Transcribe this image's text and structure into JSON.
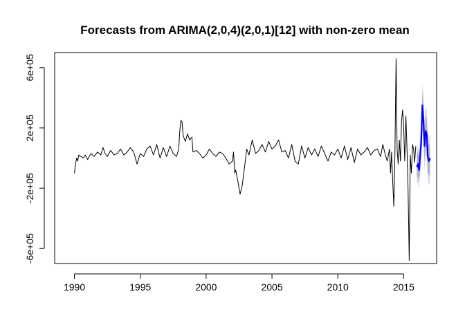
{
  "chart_data": {
    "type": "line",
    "title": "Forecasts from ARIMA(2,0,4)(2,0,1)[12] with non-zero mean",
    "xlabel": "",
    "ylabel": "",
    "xlim": [
      1988.5,
      2017.5
    ],
    "ylim": [
      -700000,
      700000
    ],
    "x_ticks": [
      1990,
      1995,
      2000,
      2005,
      2010,
      2015
    ],
    "x_tick_labels": [
      "1990",
      "1995",
      "2000",
      "2005",
      "2010",
      "2015"
    ],
    "y_ticks": [
      -600000,
      -200000,
      200000,
      600000
    ],
    "y_tick_labels": [
      "-6e+05",
      "-2e+05",
      "2e+05",
      "6e+05"
    ],
    "grid": false,
    "legend": "none",
    "colors": {
      "history": "#000000",
      "forecast": "#0000ff",
      "interval_95": "#dbdbe6",
      "interval_80": "#b1b1cc"
    },
    "series": [
      {
        "x": [
          1990.0,
          1990.08,
          1990.17,
          1990.25,
          1990.33,
          1990.5,
          1990.67,
          1990.83,
          1991.0,
          1991.25,
          1991.5,
          1991.75,
          1992.0,
          1992.17,
          1992.33,
          1992.5,
          1992.75,
          1993.0,
          1993.25,
          1993.5,
          1993.75,
          1994.0,
          1994.25,
          1994.5,
          1994.75,
          1995.0,
          1995.25,
          1995.5,
          1995.75,
          1996.0,
          1996.25,
          1996.5,
          1996.75,
          1997.0,
          1997.25,
          1997.5,
          1997.75,
          1997.92,
          1998.0,
          1998.08,
          1998.17,
          1998.25,
          1998.42,
          1998.58,
          1998.75,
          1998.92,
          1999.0,
          1999.25,
          1999.5,
          1999.75,
          2000.0,
          2000.25,
          2000.5,
          2000.75,
          2001.0,
          2001.25,
          2001.5,
          2001.75,
          2002.0,
          2002.08,
          2002.17,
          2002.25,
          2002.42,
          2002.58,
          2002.75,
          2003.0,
          2003.08,
          2003.25,
          2003.5,
          2003.75,
          2004.0,
          2004.25,
          2004.5,
          2004.75,
          2005.0,
          2005.25,
          2005.5,
          2005.75,
          2006.0,
          2006.25,
          2006.5,
          2006.75,
          2007.0,
          2007.25,
          2007.5,
          2007.75,
          2008.0,
          2008.25,
          2008.5,
          2008.75,
          2009.0,
          2009.25,
          2009.5,
          2009.75,
          2010.0,
          2010.25,
          2010.5,
          2010.75,
          2011.0,
          2011.25,
          2011.5,
          2011.75,
          2012.0,
          2012.25,
          2012.5,
          2012.75,
          2013.0,
          2013.25,
          2013.42,
          2013.58,
          2013.75,
          2013.92,
          2014.0,
          2014.08,
          2014.17,
          2014.25,
          2014.33,
          2014.42,
          2014.5,
          2014.58,
          2014.67,
          2014.75,
          2014.83,
          2014.92,
          2015.0,
          2015.08,
          2015.17,
          2015.25,
          2015.33,
          2015.42,
          2015.5,
          2015.58,
          2015.67,
          2015.75,
          2015.83,
          2015.92
        ],
        "values": [
          -100000,
          -40000,
          0,
          -20000,
          20000,
          10000,
          0,
          20000,
          -10000,
          30000,
          10000,
          40000,
          20000,
          70000,
          30000,
          10000,
          50000,
          20000,
          30000,
          60000,
          20000,
          40000,
          70000,
          40000,
          -40000,
          30000,
          10000,
          60000,
          80000,
          20000,
          90000,
          0,
          70000,
          10000,
          80000,
          30000,
          10000,
          60000,
          180000,
          250000,
          240000,
          150000,
          110000,
          160000,
          120000,
          140000,
          40000,
          50000,
          30000,
          0,
          20000,
          60000,
          30000,
          10000,
          40000,
          30000,
          0,
          -40000,
          -20000,
          40000,
          -100000,
          -80000,
          -160000,
          -240000,
          -180000,
          0,
          60000,
          20000,
          120000,
          30000,
          50000,
          90000,
          40000,
          110000,
          60000,
          80000,
          120000,
          40000,
          50000,
          0,
          90000,
          -20000,
          -40000,
          80000,
          0,
          70000,
          20000,
          60000,
          10000,
          80000,
          30000,
          -20000,
          40000,
          20000,
          60000,
          0,
          80000,
          -10000,
          70000,
          -30000,
          60000,
          20000,
          40000,
          70000,
          20000,
          50000,
          60000,
          10000,
          90000,
          30000,
          -20000,
          60000,
          -100000,
          40000,
          -160000,
          -320000,
          20000,
          660000,
          60000,
          -40000,
          120000,
          -20000,
          240000,
          320000,
          200000,
          -20000,
          280000,
          60000,
          -200000,
          -680000,
          20000,
          -100000,
          90000,
          60000,
          -30000,
          80000
        ],
        "color": "#000000"
      },
      {
        "x": [
          2016.0,
          2016.08,
          2016.17,
          2016.25,
          2016.33,
          2016.42,
          2016.5,
          2016.58,
          2016.67,
          2016.75,
          2016.83,
          2016.92,
          2017.0
        ],
        "values": [
          -60000,
          -40000,
          -80000,
          20000,
          100000,
          350000,
          250000,
          80000,
          180000,
          160000,
          10000,
          -20000,
          0
        ],
        "color": "#0000ff"
      }
    ],
    "intervals": {
      "x": [
        2016.0,
        2016.08,
        2016.17,
        2016.25,
        2016.33,
        2016.42,
        2016.5,
        2016.58,
        2016.67,
        2016.75,
        2016.83,
        2016.92,
        2017.0
      ],
      "lo95": [
        -180000,
        -160000,
        -200000,
        -110000,
        -40000,
        180000,
        90000,
        -80000,
        20000,
        0,
        -150000,
        -180000,
        -160000
      ],
      "hi95": [
        60000,
        80000,
        40000,
        150000,
        240000,
        500000,
        410000,
        240000,
        340000,
        320000,
        170000,
        140000,
        160000
      ],
      "lo80": [
        -140000,
        -120000,
        -160000,
        -70000,
        10000,
        240000,
        150000,
        -20000,
        80000,
        60000,
        -90000,
        -120000,
        -100000
      ],
      "hi80": [
        20000,
        40000,
        0,
        110000,
        190000,
        440000,
        350000,
        180000,
        280000,
        260000,
        110000,
        80000,
        100000
      ]
    }
  }
}
